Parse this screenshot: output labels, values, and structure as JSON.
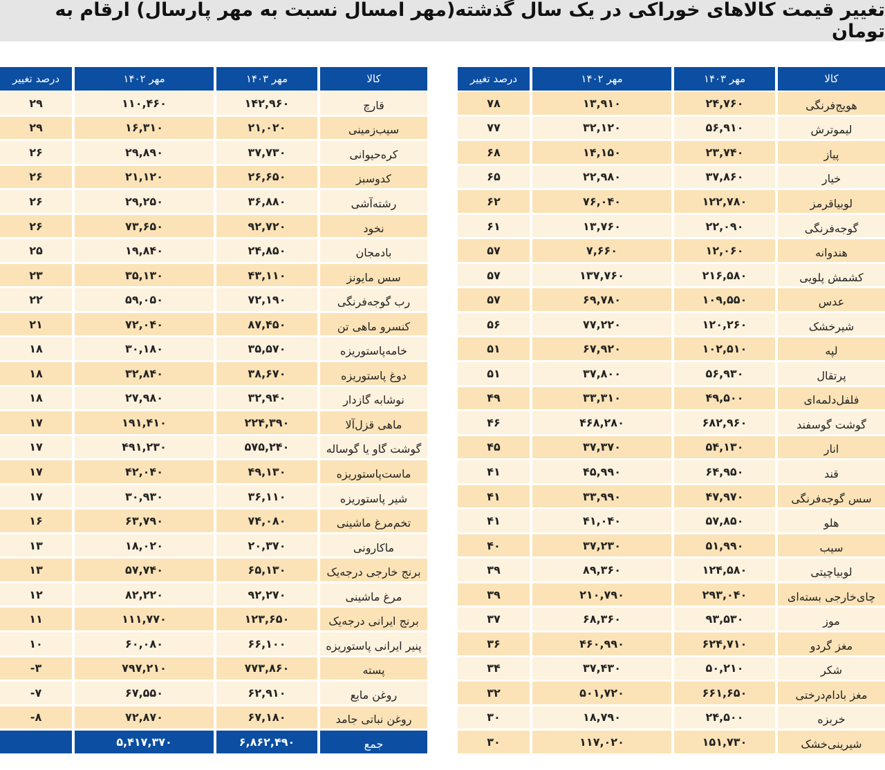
{
  "title": "تغییر قیمت کالاهای خوراکی در یک سال گذشته(مهر امسال نسبت به مهر پارسال) ارقام به تومان",
  "colors": {
    "header": "#0b4ea2",
    "row_dark": "#fbe3b7",
    "row_light": "#fdf2de",
    "title_bg": "#e5e5e5"
  },
  "headers": {
    "item": "کالا",
    "mehr1403": "مهر ۱۴۰۳",
    "mehr1402": "مهر ۱۴۰۲",
    "change": "درصد تغییر"
  },
  "right_table": [
    [
      "هویج‌فرنگی",
      "۲۴,۷۶۰",
      "۱۳,۹۱۰",
      "۷۸"
    ],
    [
      "لیموترش",
      "۵۶,۹۱۰",
      "۳۲,۱۲۰",
      "۷۷"
    ],
    [
      "پیاز",
      "۲۳,۷۴۰",
      "۱۴,۱۵۰",
      "۶۸"
    ],
    [
      "خیار",
      "۳۷,۸۶۰",
      "۲۲,۹۸۰",
      "۶۵"
    ],
    [
      "لوبیاقرمز",
      "۱۲۲,۷۸۰",
      "۷۶,۰۴۰",
      "۶۲"
    ],
    [
      "گوجه‌فرنگی",
      "۲۲,۰۹۰",
      "۱۳,۷۶۰",
      "۶۱"
    ],
    [
      "هندوانه",
      "۱۲,۰۶۰",
      "۷,۶۶۰",
      "۵۷"
    ],
    [
      "کشمش پلویی",
      "۲۱۶,۵۸۰",
      "۱۳۷,۷۶۰",
      "۵۷"
    ],
    [
      "عدس",
      "۱۰۹,۵۵۰",
      "۶۹,۷۸۰",
      "۵۷"
    ],
    [
      "شیرخشک",
      "۱۲۰,۲۶۰",
      "۷۷,۲۲۰",
      "۵۶"
    ],
    [
      "لپه",
      "۱۰۲,۵۱۰",
      "۶۷,۹۲۰",
      "۵۱"
    ],
    [
      "پرتقال",
      "۵۶,۹۳۰",
      "۳۷,۸۰۰",
      "۵۱"
    ],
    [
      "فلفل‌دلمه‌ای",
      "۴۹,۵۰۰",
      "۳۳,۳۱۰",
      "۴۹"
    ],
    [
      "گوشت گوسفند",
      "۶۸۲,۹۶۰",
      "۴۶۸,۲۸۰",
      "۴۶"
    ],
    [
      "انار",
      "۵۴,۱۳۰",
      "۳۷,۳۷۰",
      "۴۵"
    ],
    [
      "قند",
      "۶۴,۹۵۰",
      "۴۵,۹۹۰",
      "۴۱"
    ],
    [
      "سس گوجه‌فرنگی",
      "۴۷,۹۷۰",
      "۳۳,۹۹۰",
      "۴۱"
    ],
    [
      "هلو",
      "۵۷,۸۵۰",
      "۴۱,۰۴۰",
      "۴۱"
    ],
    [
      "سیب",
      "۵۱,۹۹۰",
      "۳۷,۲۳۰",
      "۴۰"
    ],
    [
      "لوبیاچیتی",
      "۱۲۴,۵۸۰",
      "۸۹,۳۶۰",
      "۳۹"
    ],
    [
      "چای‌خارجی بسته‌ای",
      "۲۹۳,۰۴۰",
      "۲۱۰,۷۹۰",
      "۳۹"
    ],
    [
      "موز",
      "۹۳,۵۳۰",
      "۶۸,۳۶۰",
      "۳۷"
    ],
    [
      "مغز گردو",
      "۶۲۴,۷۱۰",
      "۴۶۰,۹۹۰",
      "۳۶"
    ],
    [
      "شکر",
      "۵۰,۲۱۰",
      "۳۷,۴۳۰",
      "۳۴"
    ],
    [
      "مغز بادام‌درختی",
      "۶۶۱,۶۵۰",
      "۵۰۱,۷۲۰",
      "۳۲"
    ],
    [
      "خربزه",
      "۲۴,۵۰۰",
      "۱۸,۷۹۰",
      "۳۰"
    ],
    [
      "شیرینی‌خشک",
      "۱۵۱,۷۳۰",
      "۱۱۷,۰۲۰",
      "۳۰"
    ]
  ],
  "left_table": [
    [
      "قارچ",
      "۱۴۲,۹۶۰",
      "۱۱۰,۴۶۰",
      "۲۹"
    ],
    [
      "سیب‌زمینی",
      "۲۱,۰۲۰",
      "۱۶,۳۱۰",
      "۲۹"
    ],
    [
      "کره‌حیوانی",
      "۳۷,۷۳۰",
      "۲۹,۸۹۰",
      "۲۶"
    ],
    [
      "کدوسبز",
      "۲۶,۶۵۰",
      "۲۱,۱۲۰",
      "۲۶"
    ],
    [
      "رشته‌آشی",
      "۳۶,۸۸۰",
      "۲۹,۲۵۰",
      "۲۶"
    ],
    [
      "نخود",
      "۹۲,۷۲۰",
      "۷۳,۶۵۰",
      "۲۶"
    ],
    [
      "بادمجان",
      "۲۴,۸۵۰",
      "۱۹,۸۴۰",
      "۲۵"
    ],
    [
      "سس مایونز",
      "۴۳,۱۱۰",
      "۳۵,۱۳۰",
      "۲۳"
    ],
    [
      "رب گوجه‌فرنگی",
      "۷۲,۱۹۰",
      "۵۹,۰۵۰",
      "۲۲"
    ],
    [
      "کنسرو ماهی تن",
      "۸۷,۴۵۰",
      "۷۲,۰۴۰",
      "۲۱"
    ],
    [
      "خامه‌پاستوریزه",
      "۳۵,۵۷۰",
      "۳۰,۱۸۰",
      "۱۸"
    ],
    [
      "دوغ پاستوریزه",
      "۳۸,۶۷۰",
      "۳۲,۸۴۰",
      "۱۸"
    ],
    [
      "نوشابه گازدار",
      "۳۲,۹۴۰",
      "۲۷,۹۸۰",
      "۱۸"
    ],
    [
      "ماهی قزل‌آلا",
      "۲۲۴,۳۹۰",
      "۱۹۱,۴۱۰",
      "۱۷"
    ],
    [
      "گوشت گاو یا گوساله",
      "۵۷۵,۲۴۰",
      "۴۹۱,۲۳۰",
      "۱۷"
    ],
    [
      "ماست‌پاستوریزه",
      "۴۹,۱۳۰",
      "۴۲,۰۴۰",
      "۱۷"
    ],
    [
      "شیر پاستوریزه",
      "۳۶,۱۱۰",
      "۳۰,۹۳۰",
      "۱۷"
    ],
    [
      "تخم‌مرغ ماشینی",
      "۷۴,۰۸۰",
      "۶۳,۷۹۰",
      "۱۶"
    ],
    [
      "ماکارونی",
      "۲۰,۳۷۰",
      "۱۸,۰۲۰",
      "۱۳"
    ],
    [
      "برنج خارجی درجه‌یک",
      "۶۵,۱۳۰",
      "۵۷,۷۴۰",
      "۱۳"
    ],
    [
      "مرغ ماشینی",
      "۹۲,۲۷۰",
      "۸۲,۲۲۰",
      "۱۲"
    ],
    [
      "برنج ایرانی درجه‌یک",
      "۱۲۳,۶۵۰",
      "۱۱۱,۷۷۰",
      "۱۱"
    ],
    [
      "پنیر ایرانی پاستوریزه",
      "۶۶,۱۰۰",
      "۶۰,۰۸۰",
      "۱۰"
    ],
    [
      "پسته",
      "۷۷۳,۸۶۰",
      "۷۹۷,۲۱۰",
      "-۳"
    ],
    [
      "روغن مایع",
      "۶۲,۹۱۰",
      "۶۷,۵۵۰",
      "-۷"
    ],
    [
      "روغن نباتی جامد",
      "۶۷,۱۸۰",
      "۷۲,۸۷۰",
      "-۸"
    ]
  ],
  "total": {
    "label": "جمع",
    "mehr1403": "۶,۸۶۲,۴۹۰",
    "mehr1402": "۵,۴۱۷,۳۷۰",
    "change": ""
  }
}
